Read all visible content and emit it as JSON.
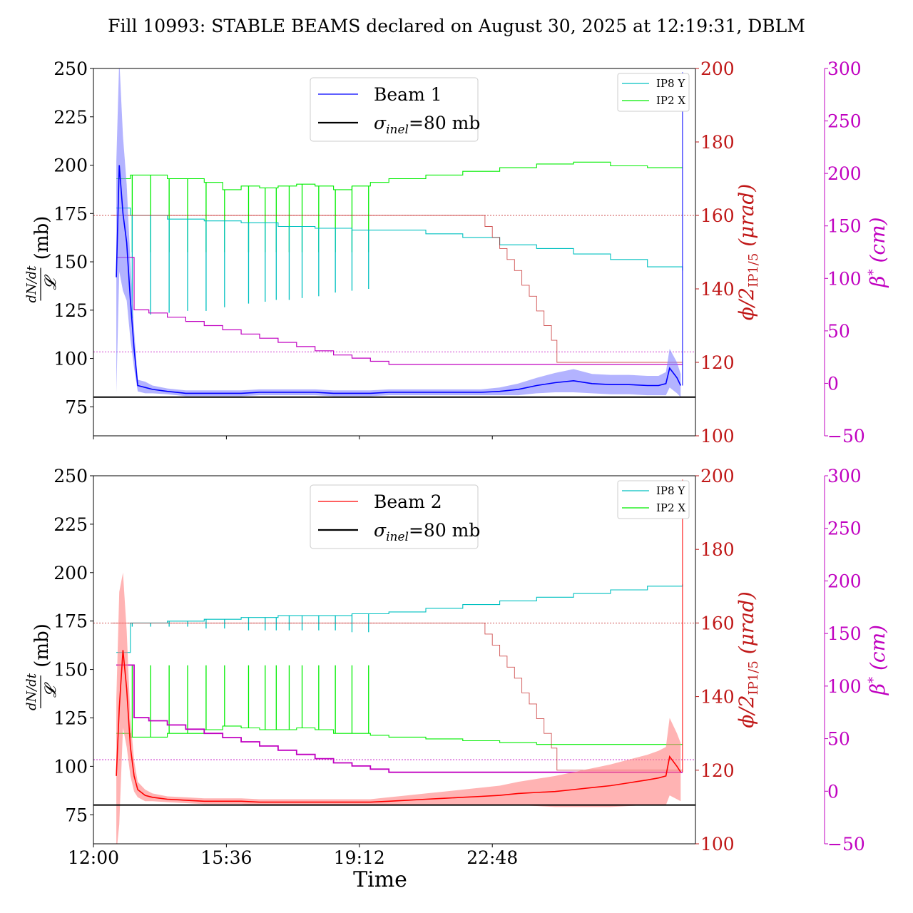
{
  "title": "Fill 10993: STABLE BEAMS declared on August 30, 2025 at 12:19:31, DBLM",
  "colors": {
    "beam1": "#0000ff",
    "beam1_band": "#8080ff",
    "beam2": "#ff0000",
    "beam2_band": "#ff8080",
    "sigma": "#000000",
    "crossing": "#c01818",
    "beta": "#c000c0",
    "ip8y": "#00c0c0",
    "ip2x": "#00ee00"
  },
  "chart_data": [
    {
      "type": "line",
      "panel": "top",
      "xlabel": "",
      "ylabel": "dN/dt / 𝓛 (mb)",
      "ylabel_parts": {
        "num": "dN/dt",
        "den": "𝓛",
        "unit": "(mb)"
      },
      "ylim": [
        60,
        250
      ],
      "yticks": [
        75,
        100,
        125,
        150,
        175,
        200,
        225,
        250
      ],
      "xlim_hours": [
        12.0,
        28.3
      ],
      "xticks": [
        "12:00",
        "15:36",
        "19:12",
        "22:48"
      ],
      "y2label": "ϕ/2IP1/5 (μrad)",
      "y2label_parts": {
        "main": "ϕ/2",
        "sub": "IP1/5",
        "unit": "(μrad)"
      },
      "y2lim": [
        100,
        200
      ],
      "y2ticks": [
        100,
        120,
        140,
        160,
        180,
        200
      ],
      "y3label": "β* (cm)",
      "y3label_parts": {
        "main": "β",
        "sup": "*",
        "unit": "(cm)"
      },
      "y3lim": [
        -50,
        300
      ],
      "y3ticks": [
        -50,
        0,
        50,
        100,
        150,
        200,
        250,
        300
      ],
      "legend_main": [
        {
          "label": "Beam 1",
          "color": "#0000ff"
        },
        {
          "label": "σinel=80 mb",
          "label_parts": {
            "sym": "σ",
            "sub": "inel",
            "rest": "=80 mb"
          },
          "color": "#000000"
        }
      ],
      "legend_small": [
        {
          "label": "IP8 Y",
          "color": "#00c0c0"
        },
        {
          "label": "IP2 X",
          "color": "#00ee00"
        }
      ],
      "sigma_inel_mb": 80,
      "beam_series": {
        "name": "Beam 1",
        "t": [
          12.62,
          12.7,
          12.8,
          12.9,
          13.0,
          13.1,
          13.2,
          13.4,
          13.6,
          14.0,
          14.5,
          15.0,
          15.5,
          16.0,
          16.5,
          17.0,
          17.5,
          18.0,
          18.5,
          19.0,
          19.5,
          20.0,
          20.5,
          21.0,
          21.5,
          22.0,
          22.5,
          23.0,
          23.5,
          24.0,
          24.5,
          25.0,
          25.5,
          26.0,
          26.5,
          27.0,
          27.3,
          27.5,
          27.6,
          27.8,
          27.9
        ],
        "values": [
          142,
          200,
          175,
          160,
          130,
          105,
          86,
          85,
          84,
          83,
          82,
          82,
          82,
          82,
          82.5,
          82.5,
          82.5,
          82.5,
          82,
          82,
          82,
          82.5,
          82.5,
          82.5,
          82.5,
          82.5,
          82.5,
          83,
          84,
          86,
          87.5,
          88.5,
          87,
          86.5,
          86.5,
          86,
          86,
          87,
          95,
          90,
          86
        ],
        "band_halfwidth": [
          60,
          55,
          40,
          30,
          20,
          10,
          3,
          3,
          2,
          1.5,
          1.5,
          1.5,
          1.5,
          1.5,
          1.5,
          1.5,
          1.5,
          1.5,
          1.5,
          1.5,
          1.5,
          1.5,
          1.5,
          1.5,
          1.5,
          1.5,
          1.5,
          2,
          3,
          4,
          5,
          6,
          5,
          5,
          5,
          5,
          5,
          6,
          10,
          8,
          6
        ]
      },
      "ip8y": {
        "t": [
          12.62,
          13.0,
          14.0,
          15.0,
          16.0,
          17.0,
          18.0,
          19.0,
          20.0,
          21.0,
          22.0,
          23.0,
          24.0,
          25.0,
          26.0,
          27.0,
          27.95
        ],
        "values": [
          162,
          160,
          159,
          158.5,
          158,
          157,
          156.5,
          156,
          156,
          155,
          154,
          152,
          151,
          149.5,
          148,
          146,
          145
        ],
        "spikes_t": [
          13.05,
          13.55,
          14.05,
          14.55,
          15.05,
          15.55,
          16.2,
          16.65,
          16.95,
          17.3,
          17.65,
          18.1,
          18.55,
          19.0,
          19.45
        ],
        "spikes_to": [
          132,
          133,
          133.5,
          134,
          134,
          135,
          136,
          136.5,
          137,
          137,
          137.5,
          138,
          139,
          139.5,
          140
        ]
      },
      "ip2x": {
        "t": [
          12.62,
          13.0,
          14.0,
          15.0,
          15.5,
          16.0,
          16.5,
          17.0,
          17.5,
          18.0,
          18.5,
          19.0,
          19.5,
          20.0,
          21.0,
          22.0,
          23.0,
          24.0,
          25.0,
          26.0,
          27.0,
          27.95
        ],
        "values": [
          170,
          171,
          170,
          169,
          167,
          168,
          167.5,
          168,
          168.5,
          168,
          167,
          168,
          169,
          170,
          171,
          172,
          173,
          174,
          174.5,
          173.5,
          173,
          173
        ],
        "spikes_t": [
          13.05,
          13.55,
          14.05,
          14.55,
          15.05,
          15.55,
          16.2,
          16.65,
          16.95,
          17.3,
          17.65,
          18.1,
          18.55,
          19.0,
          19.45
        ],
        "spikes_to": [
          150,
          150,
          150,
          150,
          150,
          150,
          150,
          150,
          150,
          150,
          150,
          150,
          150,
          150,
          150
        ]
      },
      "crossing_angle": {
        "reference_urad": 160,
        "t": [
          12.5,
          22.45,
          22.6,
          22.8,
          23.0,
          23.2,
          23.4,
          23.6,
          23.8,
          24.0,
          24.2,
          24.4,
          24.55,
          27.95
        ],
        "values": [
          160,
          160,
          157,
          154,
          151,
          148,
          145,
          141,
          138,
          134,
          130,
          126,
          120,
          120
        ]
      },
      "beta_star": {
        "reference_cm": 30,
        "t": [
          12.62,
          13.0,
          13.1,
          13.5,
          14.0,
          14.5,
          15.0,
          15.5,
          16.0,
          16.5,
          17.0,
          17.5,
          18.0,
          18.5,
          19.0,
          19.5,
          20.0,
          27.95
        ],
        "values": [
          120,
          120,
          70,
          67,
          63,
          59,
          55,
          51,
          47,
          43,
          39,
          35,
          31,
          27,
          24,
          21,
          18,
          18
        ]
      }
    },
    {
      "type": "line",
      "panel": "bottom",
      "xlabel": "Time",
      "ylabel": "dN/dt / 𝓛 (mb)",
      "ylabel_parts": {
        "num": "dN/dt",
        "den": "𝓛",
        "unit": "(mb)"
      },
      "ylim": [
        60,
        250
      ],
      "yticks": [
        75,
        100,
        125,
        150,
        175,
        200,
        225,
        250
      ],
      "xlim_hours": [
        12.0,
        28.3
      ],
      "xticks": [
        "12:00",
        "15:36",
        "19:12",
        "22:48"
      ],
      "y2label": "ϕ/2IP1/5 (μrad)",
      "y2label_parts": {
        "main": "ϕ/2",
        "sub": "IP1/5",
        "unit": "(μrad)"
      },
      "y2lim": [
        100,
        200
      ],
      "y2ticks": [
        100,
        120,
        140,
        160,
        180,
        200
      ],
      "y3label": "β* (cm)",
      "y3label_parts": {
        "main": "β",
        "sup": "*",
        "unit": "(cm)"
      },
      "y3lim": [
        -50,
        300
      ],
      "y3ticks": [
        -50,
        0,
        50,
        100,
        150,
        200,
        250,
        300
      ],
      "legend_main": [
        {
          "label": "Beam 2",
          "color": "#ff0000"
        },
        {
          "label": "σinel=80 mb",
          "label_parts": {
            "sym": "σ",
            "sub": "inel",
            "rest": "=80 mb"
          },
          "color": "#000000"
        }
      ],
      "legend_small": [
        {
          "label": "IP8 Y",
          "color": "#00c0c0"
        },
        {
          "label": "IP2 X",
          "color": "#00ee00"
        }
      ],
      "sigma_inel_mb": 80,
      "beam_series": {
        "name": "Beam 2",
        "t": [
          12.62,
          12.7,
          12.8,
          12.9,
          13.0,
          13.1,
          13.2,
          13.4,
          13.6,
          14.0,
          14.5,
          15.0,
          15.5,
          16.0,
          16.5,
          17.0,
          17.5,
          18.0,
          18.5,
          19.0,
          19.5,
          20.0,
          20.5,
          21.0,
          21.5,
          22.0,
          22.5,
          23.0,
          23.5,
          24.0,
          24.5,
          25.0,
          25.5,
          26.0,
          26.5,
          27.0,
          27.3,
          27.5,
          27.6,
          27.8,
          27.9
        ],
        "values": [
          95,
          130,
          160,
          140,
          110,
          95,
          88,
          85,
          84,
          83,
          82.5,
          82,
          82,
          82,
          81.5,
          81.5,
          81.5,
          81.5,
          81.5,
          81.5,
          81.5,
          82,
          82.5,
          83,
          83.5,
          84,
          84.5,
          85,
          86,
          86.5,
          87,
          88,
          89,
          90,
          91.5,
          93,
          94,
          95,
          105,
          100,
          97
        ],
        "band_halfwidth": [
          40,
          60,
          40,
          30,
          15,
          8,
          4,
          3,
          2,
          1.5,
          1.5,
          1.5,
          1.5,
          1.5,
          1.5,
          1.5,
          1.5,
          1.5,
          1.5,
          1.5,
          1.5,
          2,
          2.5,
          3,
          3.5,
          4,
          4.5,
          5,
          6,
          7,
          8,
          9,
          10,
          11,
          12,
          13,
          14,
          15,
          20,
          17,
          15
        ]
      },
      "ip8y": {
        "t": [
          12.62,
          13.0,
          14.0,
          15.0,
          16.0,
          17.0,
          18.0,
          19.0,
          20.0,
          21.0,
          22.0,
          23.0,
          24.0,
          25.0,
          26.0,
          27.0,
          27.95
        ],
        "values": [
          152,
          160,
          160.5,
          161,
          161.5,
          162,
          162,
          162.5,
          163,
          164,
          165,
          166,
          167,
          168,
          169,
          170,
          170.5
        ],
        "spikes_t": [
          13.05,
          13.55,
          14.05,
          14.55,
          15.05,
          15.55,
          16.2,
          16.65,
          16.95,
          17.3,
          17.65,
          18.1,
          18.55,
          19.0,
          19.45
        ],
        "spikes_to": [
          159,
          159,
          159,
          159,
          158.5,
          158.5,
          158,
          158,
          158,
          158,
          158,
          158,
          158,
          157.5,
          157.5
        ]
      },
      "ip2x": {
        "t": [
          12.62,
          13.0,
          14.0,
          15.0,
          15.5,
          16.0,
          16.5,
          17.0,
          17.5,
          18.0,
          18.5,
          19.0,
          19.5,
          20.0,
          21.0,
          22.0,
          23.0,
          24.0,
          25.0,
          26.0,
          27.0,
          27.95
        ],
        "values": [
          130,
          129,
          130,
          131,
          132,
          131.5,
          131,
          131,
          131.5,
          131,
          130,
          130,
          129.5,
          129,
          128.5,
          128,
          127.5,
          127,
          127,
          127,
          127,
          127
        ],
        "spikes_t": [
          13.05,
          13.55,
          14.05,
          14.55,
          15.05,
          15.55,
          16.2,
          16.65,
          16.95,
          17.3,
          17.65,
          18.1,
          18.55,
          19.0,
          19.45
        ],
        "spikes_to": [
          148.5,
          148.5,
          148.5,
          148.5,
          148.5,
          148.5,
          148.5,
          148.5,
          148.5,
          148.5,
          148.5,
          148.5,
          148.5,
          148.5,
          148.5
        ]
      },
      "crossing_angle": {
        "reference_urad": 160,
        "t": [
          12.5,
          22.45,
          22.6,
          22.8,
          23.0,
          23.2,
          23.4,
          23.6,
          23.8,
          24.0,
          24.2,
          24.4,
          24.55,
          27.95
        ],
        "values": [
          160,
          160,
          157,
          154,
          151,
          148,
          145,
          141,
          138,
          134,
          130,
          126,
          120,
          120
        ]
      },
      "beta_star": {
        "reference_cm": 30,
        "t": [
          12.62,
          13.0,
          13.1,
          13.5,
          14.0,
          14.5,
          15.0,
          15.5,
          16.0,
          16.5,
          17.0,
          17.5,
          18.0,
          18.5,
          19.0,
          19.5,
          20.0,
          27.95
        ],
        "values": [
          120,
          120,
          70,
          67,
          63,
          59,
          55,
          51,
          47,
          43,
          39,
          35,
          31,
          27,
          24,
          21,
          18,
          18
        ]
      }
    }
  ]
}
